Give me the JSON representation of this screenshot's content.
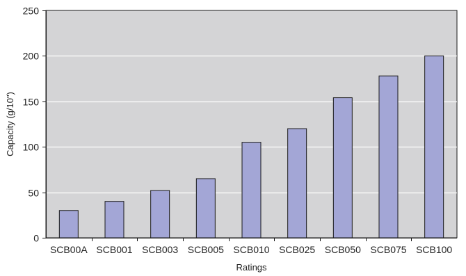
{
  "colors": {
    "plot_background": "#d4d4d6",
    "bar_fill": "#a3a6d6",
    "bar_stroke": "#1a1a1a",
    "gridline": "#ffffff",
    "axis": "#1a1a1a"
  },
  "chart_data": {
    "type": "bar",
    "title": "",
    "xlabel": "Ratings",
    "ylabel": "Capacity (g/10\")",
    "categories": [
      "SCB00A",
      "SCB001",
      "SCB003",
      "SCB005",
      "SCB010",
      "SCB025",
      "SCB050",
      "SCB075",
      "SCB100"
    ],
    "values": [
      30,
      40,
      52,
      65,
      105,
      120,
      154,
      178,
      200
    ],
    "ylim": [
      0,
      250
    ],
    "yticks": [
      0,
      50,
      100,
      150,
      200,
      250
    ],
    "grid": "horizontal",
    "legend": "none"
  }
}
